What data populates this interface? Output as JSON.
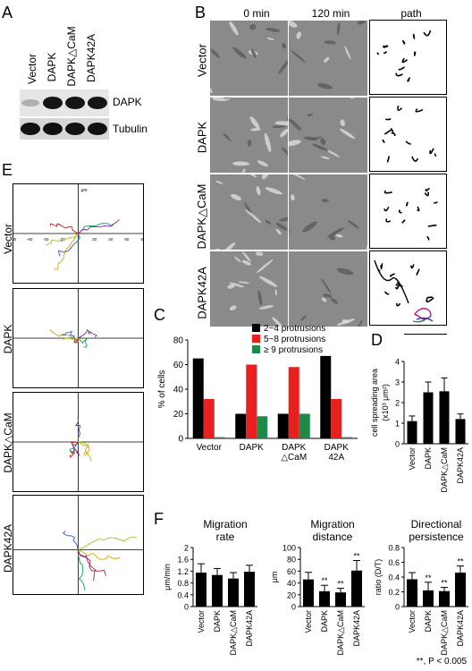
{
  "panels": {
    "A": "A",
    "B": "B",
    "C": "C",
    "D": "D",
    "E": "E",
    "F": "F"
  },
  "blot": {
    "lanes": [
      "Vector",
      "DAPK",
      "DAPK△CaM",
      "DAPK42A"
    ],
    "rows": [
      "DAPK",
      "Tubulin"
    ]
  },
  "panelB": {
    "columns": [
      "0 min",
      "120 min",
      "path"
    ],
    "rows": [
      "Vector",
      "DAPK",
      "DAPK△CaM",
      "DAPK42A"
    ]
  },
  "panelE": {
    "rows": [
      "Vector",
      "DAPK",
      "DAPK△CaM",
      "DAPK42A"
    ],
    "unit": "μm",
    "ticks": [
      "-80",
      "-60",
      "-40",
      "-20",
      "20",
      "40",
      "60",
      "80"
    ]
  },
  "chart_data": [
    {
      "id": "C",
      "type": "bar",
      "categories": [
        "Vector",
        "DAPK",
        "DAPK\n△CaM",
        "DAPK\n42A"
      ],
      "series": [
        {
          "name": "2~4 protrusions",
          "values": [
            65,
            20,
            20,
            67
          ],
          "color": "#000000"
        },
        {
          "name": "5~8 protrusions",
          "values": [
            32,
            60,
            58,
            32
          ],
          "color": "#e8201e"
        },
        {
          "name": "≥ 9 protrusions",
          "values": [
            1,
            18,
            20,
            1
          ],
          "color": "#1e8a4a"
        }
      ],
      "ylabel": "% of cells",
      "ylim": [
        0,
        80
      ],
      "yticks": [
        "0",
        "20",
        "40",
        "60",
        "80"
      ],
      "legend": "top"
    },
    {
      "id": "D",
      "type": "bar",
      "categories": [
        "Vector",
        "DAPK",
        "DAPK△CaM",
        "DAPK42A"
      ],
      "values": [
        1.1,
        2.5,
        2.55,
        1.2
      ],
      "errors": [
        0.25,
        0.5,
        0.65,
        0.25
      ],
      "ylabel": "cell spreading area",
      "ylabel2": "(x10³ μm²)",
      "ylim": [
        0,
        4
      ],
      "yticks": [
        "0",
        "1",
        "2",
        "3",
        "4"
      ]
    },
    {
      "id": "F1",
      "type": "bar",
      "title": "Migration\nrate",
      "categories": [
        "Vector",
        "DAPK",
        "DAPK△CaM",
        "DAPK42A"
      ],
      "values": [
        1.15,
        1.07,
        0.95,
        1.18
      ],
      "errors": [
        0.3,
        0.22,
        0.2,
        0.22
      ],
      "stars": [
        "",
        "",
        "",
        ""
      ],
      "ylabel": "μm/min",
      "ylim": [
        0,
        2
      ],
      "yticks": [
        "0",
        "0.4",
        "0.8",
        "1.2",
        "1.6",
        "2"
      ]
    },
    {
      "id": "F2",
      "type": "bar",
      "title": "Migration\ndistance",
      "categories": [
        "Vector",
        "DAPK",
        "DAPK△CaM",
        "DAPK42A"
      ],
      "values": [
        46,
        26,
        24,
        61
      ],
      "errors": [
        12,
        10,
        7,
        17
      ],
      "stars": [
        "",
        "**",
        "**",
        "**"
      ],
      "ylabel": "μm",
      "ylim": [
        0,
        100
      ],
      "yticks": [
        "0",
        "20",
        "40",
        "60",
        "80",
        "100"
      ]
    },
    {
      "id": "F3",
      "type": "bar",
      "title": "Directional\npersistence",
      "categories": [
        "Vector",
        "DAPK",
        "DAPK△CaM",
        "DAPK42A"
      ],
      "values": [
        0.37,
        0.22,
        0.21,
        0.46
      ],
      "errors": [
        0.09,
        0.11,
        0.05,
        0.09
      ],
      "stars": [
        "",
        "**",
        "**",
        "**"
      ],
      "ylabel": "ratio (D/T)",
      "ylim": [
        0,
        0.8
      ],
      "yticks": [
        "0",
        "0.2",
        "0.4",
        "0.6",
        "0.8"
      ]
    }
  ],
  "footnote": "**, P < 0.005"
}
